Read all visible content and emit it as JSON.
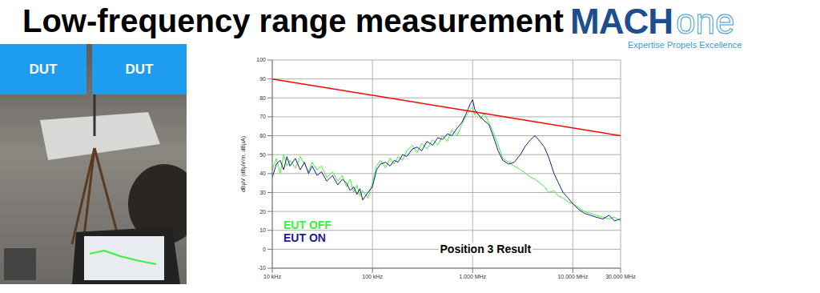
{
  "slide": {
    "title": "Low-frequency range measurement",
    "logo": {
      "bold": "MACH",
      "light": "one",
      "tagline": "Expertise Propels Excellence"
    },
    "photo": {
      "labels": [
        "DUT",
        "DUT"
      ]
    }
  },
  "chart_data": {
    "type": "line",
    "log": "x",
    "grid": true,
    "legend": "lower left",
    "y_label": "dBµV (dBµV/m, dBµA)",
    "annotation": "Position 3 Result",
    "xlim": [
      10000,
      30000000
    ],
    "xticks": [
      {
        "value": 10000,
        "label": "10 kHz"
      },
      {
        "value": 100000,
        "label": "100 kHz"
      },
      {
        "value": 1000000,
        "label": "1.000 MHz"
      },
      {
        "value": 10000000,
        "label": "10.000 MHz"
      },
      {
        "value": 30000000,
        "label": "30.000 MHz"
      }
    ],
    "ylim": [
      -10,
      100
    ],
    "yticks": [
      -10,
      0,
      10,
      20,
      30,
      40,
      50,
      60,
      70,
      80,
      90,
      100
    ],
    "x": [
      10000,
      11000,
      12000,
      13000,
      14000,
      15000,
      17000,
      19000,
      21000,
      23000,
      25000,
      28000,
      31000,
      35000,
      40000,
      45000,
      50000,
      55000,
      60000,
      65000,
      70000,
      75000,
      80000,
      90000,
      100000,
      110000,
      120000,
      135000,
      150000,
      165000,
      180000,
      200000,
      220000,
      250000,
      280000,
      310000,
      350000,
      400000,
      450000,
      500000,
      560000,
      620000,
      700000,
      780000,
      850000,
      900000,
      950000,
      1000000,
      1050000,
      1100000,
      1200000,
      1300000,
      1450000,
      1600000,
      1800000,
      2000000,
      2300000,
      2600000,
      3000000,
      3400000,
      3800000,
      4200000,
      4700000,
      5200000,
      5800000,
      6500000,
      7200000,
      8000000,
      9000000,
      10000000,
      11500000,
      13000000,
      15000000,
      17000000,
      20000000,
      23000000,
      26000000,
      30000000
    ],
    "series": [
      {
        "name": "EUT OFF",
        "color": "#3df03d",
        "values": [
          42,
          48,
          40,
          50,
          44,
          47,
          43,
          49,
          45,
          41,
          46,
          42,
          44,
          38,
          41,
          36,
          39,
          33,
          37,
          30,
          34,
          28,
          31,
          27,
          35,
          44,
          47,
          43,
          48,
          45,
          49,
          47,
          52,
          55,
          51,
          56,
          53,
          58,
          55,
          60,
          57,
          63,
          60,
          66,
          70,
          72,
          74,
          75,
          71,
          73,
          69,
          72,
          67,
          62,
          55,
          48,
          46,
          44,
          42,
          40,
          38,
          37,
          35,
          33,
          30,
          31,
          28,
          27,
          25,
          24,
          22,
          20,
          19,
          18,
          17,
          16,
          17,
          15
        ]
      },
      {
        "name": "EUT ON",
        "color": "#1c1c8c",
        "values": [
          38,
          45,
          47,
          42,
          49,
          44,
          48,
          42,
          46,
          40,
          44,
          39,
          41,
          36,
          39,
          34,
          37,
          35,
          31,
          33,
          29,
          32,
          26,
          30,
          33,
          42,
          45,
          46,
          44,
          47,
          46,
          50,
          49,
          53,
          54,
          52,
          57,
          55,
          59,
          58,
          61,
          60,
          64,
          67,
          71,
          74,
          77,
          79,
          74,
          72,
          70,
          68,
          66,
          60,
          52,
          47,
          45,
          46,
          50,
          55,
          58,
          60,
          57,
          54,
          48,
          40,
          35,
          30,
          27,
          24,
          21,
          19,
          18,
          17,
          16,
          18,
          15,
          16
        ]
      },
      {
        "color": "#ff0000",
        "x": [
          10000,
          30000000
        ],
        "values": [
          90,
          60
        ]
      }
    ]
  }
}
